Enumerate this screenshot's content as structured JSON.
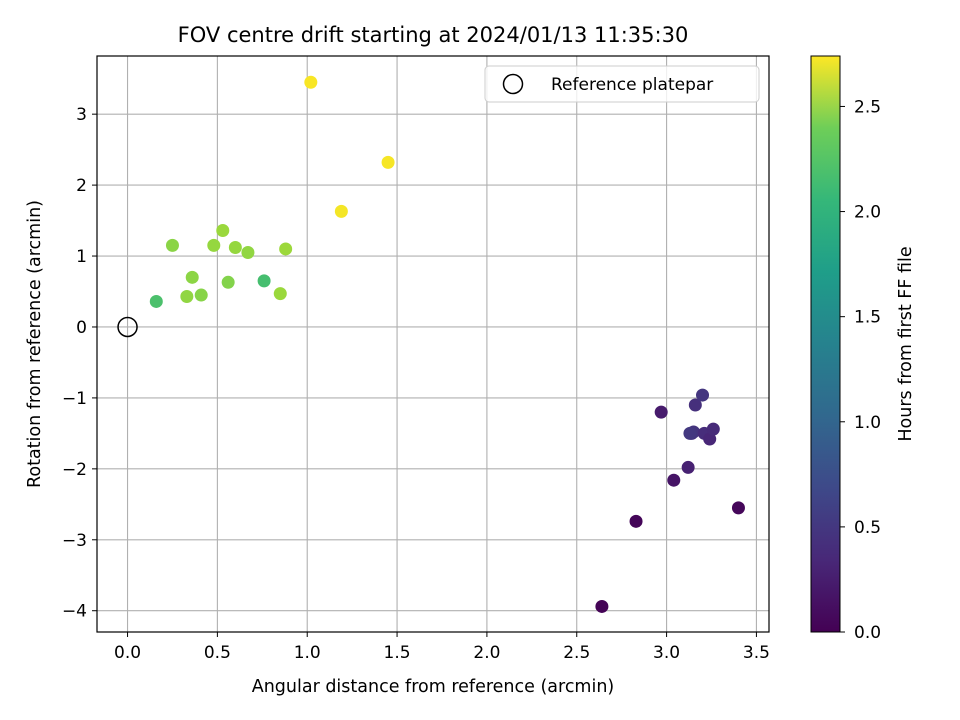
{
  "chart_data": {
    "type": "scatter",
    "title": "FOV centre drift starting at 2024/01/13 11:35:30",
    "xlabel": "Angular distance from reference (arcmin)",
    "ylabel": "Rotation from reference (arcmin)",
    "xlim": [
      -0.17,
      3.57
    ],
    "ylim": [
      -4.3,
      3.82
    ],
    "xticks": [
      0.0,
      0.5,
      1.0,
      1.5,
      2.0,
      2.5,
      3.0,
      3.5
    ],
    "xtick_labels": [
      "0.0",
      "0.5",
      "1.0",
      "1.5",
      "2.0",
      "2.5",
      "3.0",
      "3.5"
    ],
    "yticks": [
      -4,
      -3,
      -2,
      -1,
      0,
      1,
      2,
      3
    ],
    "ytick_labels": [
      "−4",
      "−3",
      "−2",
      "−1",
      "0",
      "1",
      "2",
      "3"
    ],
    "grid": true,
    "legend": {
      "placement": "top-right",
      "entries": [
        "Reference platepar"
      ]
    },
    "reference_point": {
      "x": 0.0,
      "y": 0.0,
      "label": "Reference platepar"
    },
    "colorbar": {
      "label": "Hours from first FF file",
      "colormap": "viridis",
      "range": [
        0.0,
        2.74
      ],
      "ticks": [
        0.0,
        0.5,
        1.0,
        1.5,
        2.0,
        2.5
      ],
      "tick_labels": [
        "0.0",
        "0.5",
        "1.0",
        "1.5",
        "2.0",
        "2.5"
      ]
    },
    "points": [
      {
        "x": 2.64,
        "y": -3.94,
        "c": 0.02
      },
      {
        "x": 2.83,
        "y": -2.74,
        "c": 0.03
      },
      {
        "x": 3.4,
        "y": -2.55,
        "c": 0.05
      },
      {
        "x": 3.04,
        "y": -2.16,
        "c": 0.15
      },
      {
        "x": 3.12,
        "y": -1.98,
        "c": 0.25
      },
      {
        "x": 2.97,
        "y": -1.2,
        "c": 0.2
      },
      {
        "x": 3.14,
        "y": -1.5,
        "c": 0.4
      },
      {
        "x": 3.15,
        "y": -1.48,
        "c": 0.42
      },
      {
        "x": 3.13,
        "y": -1.5,
        "c": 0.45
      },
      {
        "x": 3.21,
        "y": -1.5,
        "c": 0.35
      },
      {
        "x": 3.24,
        "y": -1.58,
        "c": 0.3
      },
      {
        "x": 3.26,
        "y": -1.44,
        "c": 0.33
      },
      {
        "x": 3.16,
        "y": -1.1,
        "c": 0.38
      },
      {
        "x": 3.2,
        "y": -0.96,
        "c": 0.43
      },
      {
        "x": 0.16,
        "y": 0.36,
        "c": 1.95
      },
      {
        "x": 0.25,
        "y": 1.15,
        "c": 2.25
      },
      {
        "x": 0.33,
        "y": 0.43,
        "c": 2.28
      },
      {
        "x": 0.36,
        "y": 0.7,
        "c": 2.26
      },
      {
        "x": 0.41,
        "y": 0.45,
        "c": 2.24
      },
      {
        "x": 0.48,
        "y": 1.15,
        "c": 2.3
      },
      {
        "x": 0.53,
        "y": 1.36,
        "c": 2.32
      },
      {
        "x": 0.56,
        "y": 0.63,
        "c": 2.22
      },
      {
        "x": 0.6,
        "y": 1.12,
        "c": 2.3
      },
      {
        "x": 0.67,
        "y": 1.05,
        "c": 2.28
      },
      {
        "x": 0.76,
        "y": 0.65,
        "c": 1.92
      },
      {
        "x": 0.85,
        "y": 0.47,
        "c": 2.32
      },
      {
        "x": 0.88,
        "y": 1.1,
        "c": 2.33
      },
      {
        "x": 1.02,
        "y": 3.45,
        "c": 2.72
      },
      {
        "x": 1.19,
        "y": 1.63,
        "c": 2.7
      },
      {
        "x": 1.45,
        "y": 2.32,
        "c": 2.71
      }
    ]
  }
}
